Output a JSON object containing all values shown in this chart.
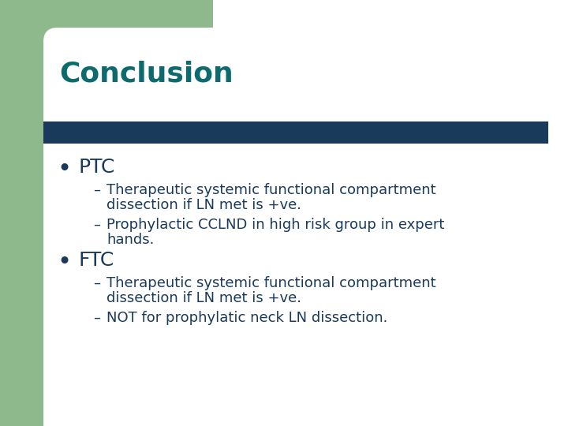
{
  "title": "Conclusion",
  "title_color": "#0d6b6e",
  "title_fontsize": 26,
  "bg_color": "#ffffff",
  "green_color": "#8db98d",
  "divider_color": "#1a3a5c",
  "text_color": "#1a3a5c",
  "bullet1": "PTC",
  "bullet2": "FTC",
  "bullet_fontsize": 18,
  "sub_fontsize": 13,
  "sub1a_line1": "Therapeutic systemic functional compartment",
  "sub1a_line2": "dissection if LN met is +ve.",
  "sub1b_line1": "Prophylactic CCLND in high risk group in expert",
  "sub1b_line2": "hands.",
  "sub2a_line1": "Therapeutic systemic functional compartment",
  "sub2a_line2": "dissection if LN met is +ve.",
  "sub2b": "NOT for prophylatic neck LN dissection."
}
